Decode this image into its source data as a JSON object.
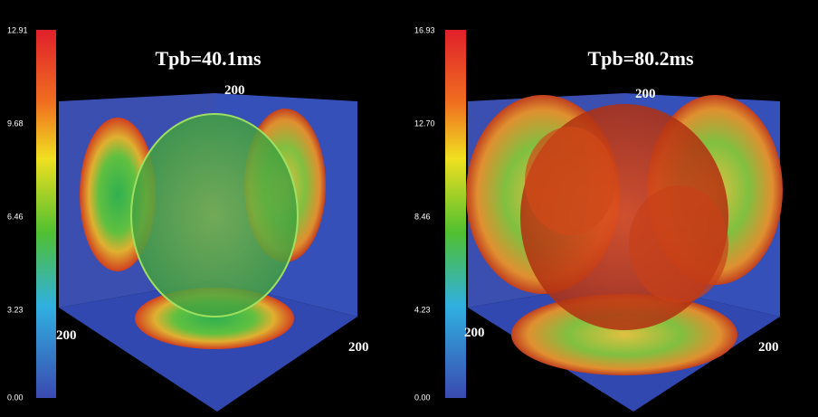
{
  "panels": [
    {
      "title": "Tpb=40.1ms",
      "colorbar_ticks": [
        "12.91",
        "9.68",
        "6.46",
        "3.23",
        "0.00"
      ],
      "axis_labels": [
        "200",
        "200",
        "200"
      ]
    },
    {
      "title": "Tpb=80.2ms",
      "colorbar_ticks": [
        "16.93",
        "12.70",
        "8.46",
        "4.23",
        "0.00"
      ],
      "axis_labels": [
        "200",
        "200",
        "200"
      ]
    }
  ]
}
